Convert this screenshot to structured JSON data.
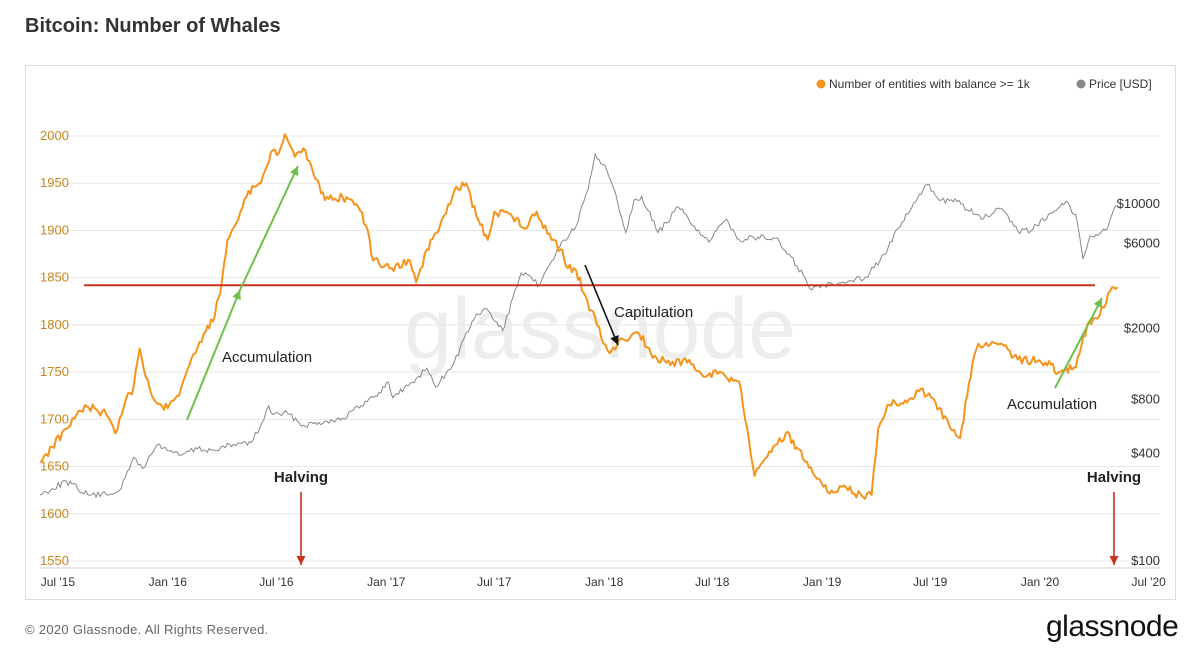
{
  "header": {
    "title": "Bitcoin: Number of Whales"
  },
  "footer": {
    "copyright": "© 2020 Glassnode. All Rights Reserved.",
    "logo": "glassnode"
  },
  "watermark": "glassnode",
  "colors": {
    "whales": "#f7931a",
    "price": "#888888",
    "threshold": "#c8321e",
    "up_arrow": "#6fbf4a",
    "down_arrow": "#111111",
    "halving": "#c8321e",
    "left_axis": "#c8871e"
  },
  "chart_data": {
    "type": "line",
    "title": "Bitcoin: Number of Whales",
    "legend_position": "top-right",
    "grid": true,
    "x_range": [
      "2015-06-01",
      "2020-07-20"
    ],
    "x_ticks": [
      {
        "label": "Jul '15",
        "date": "2015-07-01"
      },
      {
        "label": "Jan '16",
        "date": "2016-01-01"
      },
      {
        "label": "Jul '16",
        "date": "2016-07-01"
      },
      {
        "label": "Jan '17",
        "date": "2017-01-01"
      },
      {
        "label": "Jul '17",
        "date": "2017-07-01"
      },
      {
        "label": "Jan '18",
        "date": "2018-01-01"
      },
      {
        "label": "Jul '18",
        "date": "2018-07-01"
      },
      {
        "label": "Jan '19",
        "date": "2019-01-01"
      },
      {
        "label": "Jul '19",
        "date": "2019-07-01"
      },
      {
        "label": "Jan '20",
        "date": "2020-01-01"
      },
      {
        "label": "Jul '20",
        "date": "2020-07-01"
      }
    ],
    "y_left": {
      "range": [
        1550,
        2000
      ],
      "ticks": [
        1550,
        1600,
        1650,
        1700,
        1750,
        1800,
        1850,
        1900,
        1950,
        2000
      ]
    },
    "y_right": {
      "scale": "log",
      "range": [
        100,
        20000
      ],
      "ticks": [
        {
          "label": "$100",
          "value": 100
        },
        {
          "label": "$400",
          "value": 400
        },
        {
          "label": "$800",
          "value": 800
        },
        {
          "label": "$2000",
          "value": 2000
        },
        {
          "label": "$6000",
          "value": 6000
        },
        {
          "label": "$10000",
          "value": 10000
        }
      ]
    },
    "series": [
      {
        "name": "Number of entities with balance >= 1k",
        "axis": "left",
        "points": [
          [
            "2015-06-01",
            1655
          ],
          [
            "2015-07-15",
            1690
          ],
          [
            "2015-08-15",
            1715
          ],
          [
            "2015-09-20",
            1705
          ],
          [
            "2015-10-05",
            1685
          ],
          [
            "2015-10-20",
            1715
          ],
          [
            "2015-11-05",
            1735
          ],
          [
            "2015-11-15",
            1775
          ],
          [
            "2015-11-25",
            1745
          ],
          [
            "2015-12-10",
            1720
          ],
          [
            "2016-01-01",
            1712
          ],
          [
            "2016-01-20",
            1725
          ],
          [
            "2016-02-10",
            1765
          ],
          [
            "2016-03-01",
            1790
          ],
          [
            "2016-03-20",
            1810
          ],
          [
            "2016-04-01",
            1848
          ],
          [
            "2016-04-10",
            1890
          ],
          [
            "2016-04-25",
            1908
          ],
          [
            "2016-05-15",
            1942
          ],
          [
            "2016-06-05",
            1950
          ],
          [
            "2016-06-25",
            1985
          ],
          [
            "2016-07-05",
            1982
          ],
          [
            "2016-07-15",
            2002
          ],
          [
            "2016-08-01",
            1978
          ],
          [
            "2016-08-15",
            1987
          ],
          [
            "2016-09-01",
            1960
          ],
          [
            "2016-09-20",
            1932
          ],
          [
            "2016-10-20",
            1935
          ],
          [
            "2016-11-15",
            1925
          ],
          [
            "2016-12-01",
            1900
          ],
          [
            "2016-12-10",
            1868
          ],
          [
            "2017-01-10",
            1860
          ],
          [
            "2017-02-10",
            1868
          ],
          [
            "2017-02-20",
            1845
          ],
          [
            "2017-03-10",
            1880
          ],
          [
            "2017-04-01",
            1905
          ],
          [
            "2017-04-25",
            1942
          ],
          [
            "2017-05-15",
            1950
          ],
          [
            "2017-06-01",
            1915
          ],
          [
            "2017-06-20",
            1890
          ],
          [
            "2017-07-01",
            1920
          ],
          [
            "2017-07-25",
            1918
          ],
          [
            "2017-08-20",
            1902
          ],
          [
            "2017-09-10",
            1920
          ],
          [
            "2017-10-05",
            1890
          ],
          [
            "2017-10-20",
            1880
          ],
          [
            "2017-11-01",
            1860
          ],
          [
            "2017-11-15",
            1858
          ],
          [
            "2017-12-01",
            1830
          ],
          [
            "2017-12-20",
            1800
          ],
          [
            "2018-01-10",
            1770
          ],
          [
            "2018-02-01",
            1785
          ],
          [
            "2018-03-01",
            1790
          ],
          [
            "2018-03-20",
            1770
          ],
          [
            "2018-04-15",
            1760
          ],
          [
            "2018-05-20",
            1760
          ],
          [
            "2018-06-20",
            1745
          ],
          [
            "2018-07-10",
            1748
          ],
          [
            "2018-08-15",
            1740
          ],
          [
            "2018-08-25",
            1700
          ],
          [
            "2018-09-10",
            1640
          ],
          [
            "2018-10-01",
            1660
          ],
          [
            "2018-11-01",
            1685
          ],
          [
            "2018-11-20",
            1670
          ],
          [
            "2018-12-20",
            1640
          ],
          [
            "2019-01-10",
            1623
          ],
          [
            "2019-02-10",
            1628
          ],
          [
            "2019-03-10",
            1618
          ],
          [
            "2019-03-25",
            1620
          ],
          [
            "2019-04-05",
            1690
          ],
          [
            "2019-04-20",
            1715
          ],
          [
            "2019-05-20",
            1720
          ],
          [
            "2019-06-15",
            1732
          ],
          [
            "2019-07-10",
            1718
          ],
          [
            "2019-08-01",
            1695
          ],
          [
            "2019-08-20",
            1680
          ],
          [
            "2019-09-01",
            1725
          ],
          [
            "2019-09-10",
            1760
          ],
          [
            "2019-09-20",
            1780
          ],
          [
            "2019-11-01",
            1778
          ],
          [
            "2019-11-15",
            1765
          ],
          [
            "2020-01-10",
            1760
          ],
          [
            "2020-02-01",
            1750
          ],
          [
            "2020-03-01",
            1755
          ],
          [
            "2020-03-20",
            1800
          ],
          [
            "2020-04-10",
            1810
          ],
          [
            "2020-05-01",
            1840
          ],
          [
            "2020-05-10",
            1840
          ]
        ]
      },
      {
        "name": "Price [USD]",
        "axis": "right",
        "points": [
          [
            "2015-06-01",
            235
          ],
          [
            "2015-07-15",
            280
          ],
          [
            "2015-08-20",
            235
          ],
          [
            "2015-09-20",
            235
          ],
          [
            "2015-10-15",
            255
          ],
          [
            "2015-11-05",
            380
          ],
          [
            "2015-11-20",
            330
          ],
          [
            "2015-12-15",
            450
          ],
          [
            "2016-01-20",
            390
          ],
          [
            "2016-02-20",
            425
          ],
          [
            "2016-03-20",
            415
          ],
          [
            "2016-04-20",
            450
          ],
          [
            "2016-05-20",
            460
          ],
          [
            "2016-06-10",
            620
          ],
          [
            "2016-06-18",
            740
          ],
          [
            "2016-06-25",
            660
          ],
          [
            "2016-07-20",
            670
          ],
          [
            "2016-08-15",
            575
          ],
          [
            "2016-09-20",
            605
          ],
          [
            "2016-10-20",
            630
          ],
          [
            "2016-11-20",
            740
          ],
          [
            "2016-12-20",
            880
          ],
          [
            "2017-01-05",
            1000
          ],
          [
            "2017-01-12",
            820
          ],
          [
            "2017-02-20",
            1050
          ],
          [
            "2017-03-10",
            1200
          ],
          [
            "2017-03-25",
            940
          ],
          [
            "2017-04-25",
            1300
          ],
          [
            "2017-05-25",
            2200
          ],
          [
            "2017-06-15",
            2600
          ],
          [
            "2017-07-15",
            1950
          ],
          [
            "2017-08-15",
            4100
          ],
          [
            "2017-09-15",
            3500
          ],
          [
            "2017-10-15",
            5600
          ],
          [
            "2017-11-15",
            7500
          ],
          [
            "2017-12-05",
            12000
          ],
          [
            "2017-12-17",
            19000
          ],
          [
            "2018-01-05",
            15500
          ],
          [
            "2018-01-20",
            11500
          ],
          [
            "2018-02-06",
            6900
          ],
          [
            "2018-02-20",
            10500
          ],
          [
            "2018-03-05",
            11000
          ],
          [
            "2018-04-01",
            6900
          ],
          [
            "2018-04-15",
            7800
          ],
          [
            "2018-05-05",
            9600
          ],
          [
            "2018-06-01",
            7500
          ],
          [
            "2018-06-25",
            6100
          ],
          [
            "2018-07-25",
            8200
          ],
          [
            "2018-08-15",
            6300
          ],
          [
            "2018-09-15",
            6500
          ],
          [
            "2018-10-15",
            6400
          ],
          [
            "2018-11-20",
            4500
          ],
          [
            "2018-12-15",
            3300
          ],
          [
            "2019-01-15",
            3600
          ],
          [
            "2019-02-15",
            3700
          ],
          [
            "2019-03-15",
            3900
          ],
          [
            "2019-04-15",
            5200
          ],
          [
            "2019-05-15",
            7900
          ],
          [
            "2019-06-26",
            12800
          ],
          [
            "2019-07-20",
            10500
          ],
          [
            "2019-08-15",
            10300
          ],
          [
            "2019-09-25",
            8200
          ],
          [
            "2019-10-26",
            9400
          ],
          [
            "2019-11-25",
            7000
          ],
          [
            "2019-12-20",
            7200
          ],
          [
            "2020-01-15",
            8700
          ],
          [
            "2020-02-13",
            10300
          ],
          [
            "2020-03-01",
            8700
          ],
          [
            "2020-03-13",
            4900
          ],
          [
            "2020-03-25",
            6600
          ],
          [
            "2020-04-20",
            7100
          ],
          [
            "2020-05-08",
            9800
          ]
        ]
      }
    ],
    "reference_lines": [
      {
        "axis": "left",
        "value": 1842,
        "color": "#c8321e"
      }
    ],
    "annotations": [
      {
        "text": "Accumulation",
        "arrow": "up"
      },
      {
        "text": "Capitulation",
        "arrow": "down"
      },
      {
        "text": "Accumulation",
        "arrow": "up"
      },
      {
        "text": "Halving",
        "date": "2016-07-09"
      },
      {
        "text": "Halving",
        "date": "2020-05-11"
      }
    ]
  }
}
